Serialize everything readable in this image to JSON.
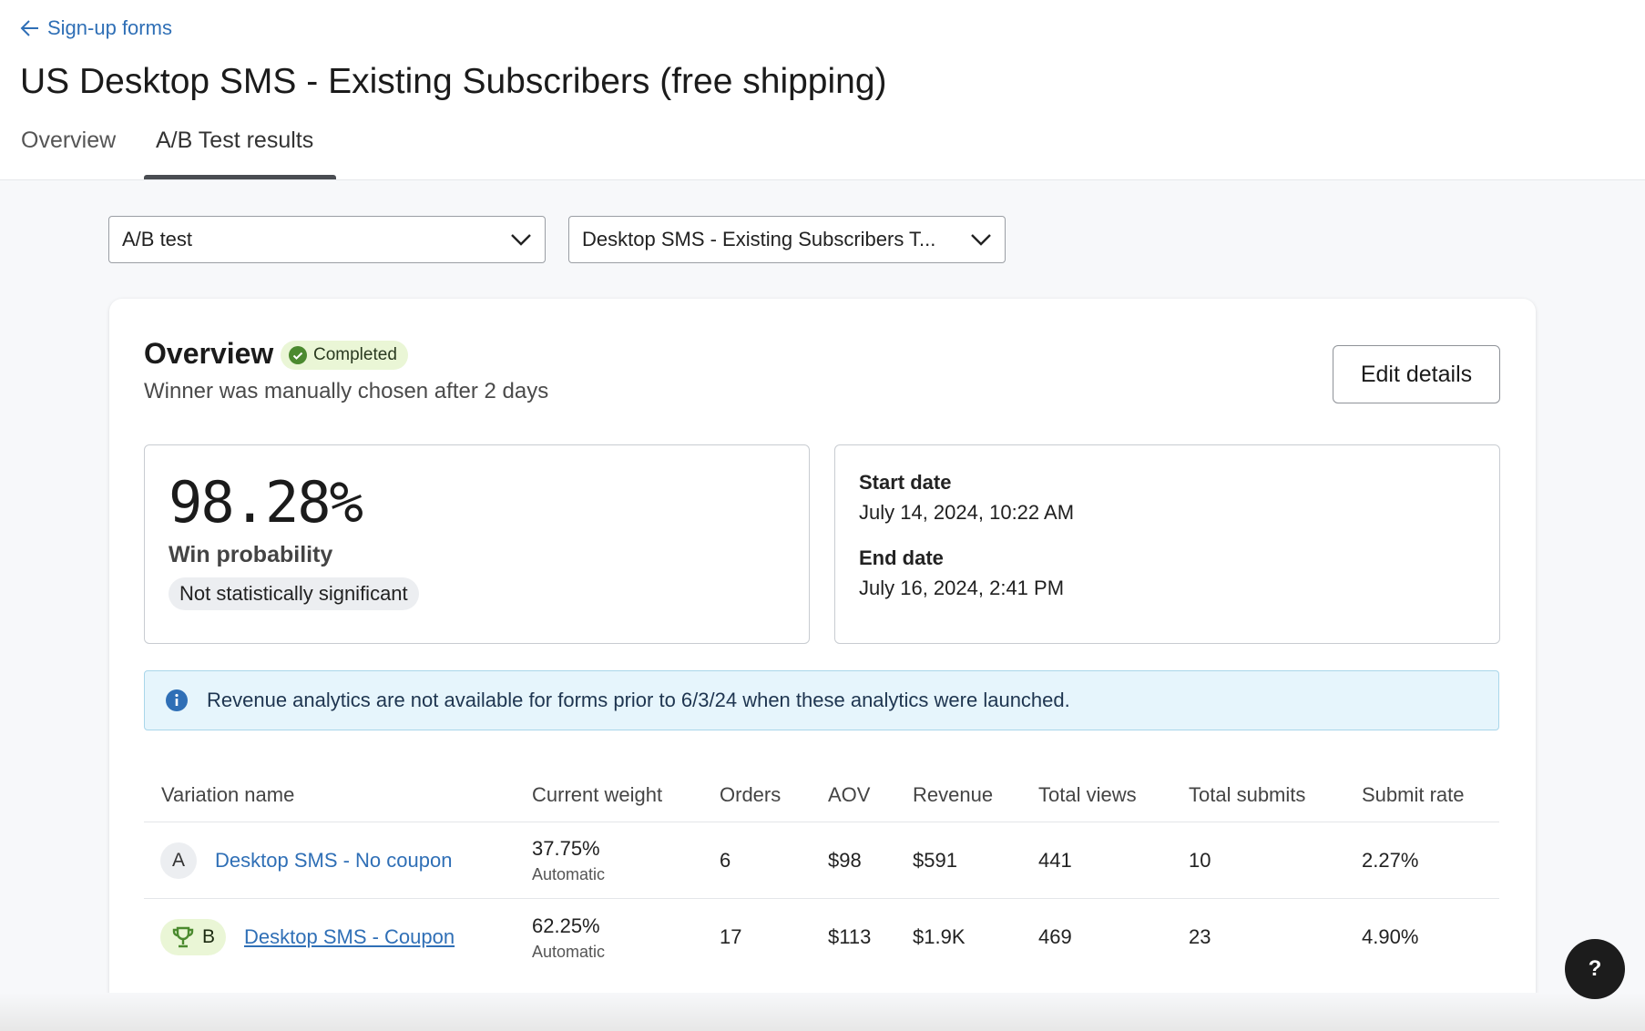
{
  "header": {
    "back_label": "Sign-up forms",
    "title": "US Desktop SMS - Existing Subscribers (free shipping)",
    "tabs": [
      {
        "label": "Overview",
        "active": false
      },
      {
        "label": "A/B Test results",
        "active": true
      }
    ]
  },
  "filters": {
    "test_type": "A/B test",
    "test_name": "Desktop SMS - Existing Subscribers T..."
  },
  "overview": {
    "heading": "Overview",
    "status": "Completed",
    "subtitle": "Winner was manually chosen after 2 days",
    "edit_label": "Edit details",
    "win_probability": "98.28%",
    "win_label": "Win probability",
    "significance": "Not statistically significant",
    "start_label": "Start date",
    "start_value": "July 14, 2024, 10:22 AM",
    "end_label": "End date",
    "end_value": "July 16, 2024, 2:41 PM",
    "info": "Revenue analytics are not available for forms prior to 6/3/24 when these analytics were launched."
  },
  "table": {
    "headers": [
      "Variation name",
      "Current weight",
      "Orders",
      "AOV",
      "Revenue",
      "Total views",
      "Total submits",
      "Submit rate"
    ],
    "rows": [
      {
        "letter": "A",
        "name": "Desktop SMS - No coupon",
        "weight": "37.75%",
        "weight_mode": "Automatic",
        "orders": "6",
        "aov": "$98",
        "revenue": "$591",
        "views": "441",
        "submits": "10",
        "rate": "2.27%",
        "winner": false
      },
      {
        "letter": "B",
        "name": "Desktop SMS - Coupon",
        "weight": "62.25%",
        "weight_mode": "Automatic",
        "orders": "17",
        "aov": "$113",
        "revenue": "$1.9K",
        "views": "469",
        "submits": "23",
        "rate": "4.90%",
        "winner": true
      }
    ]
  },
  "help_label": "?",
  "colors": {
    "link": "#2f6fb6",
    "success": "#4b8a2f",
    "info_bg": "#e6f5fc"
  }
}
